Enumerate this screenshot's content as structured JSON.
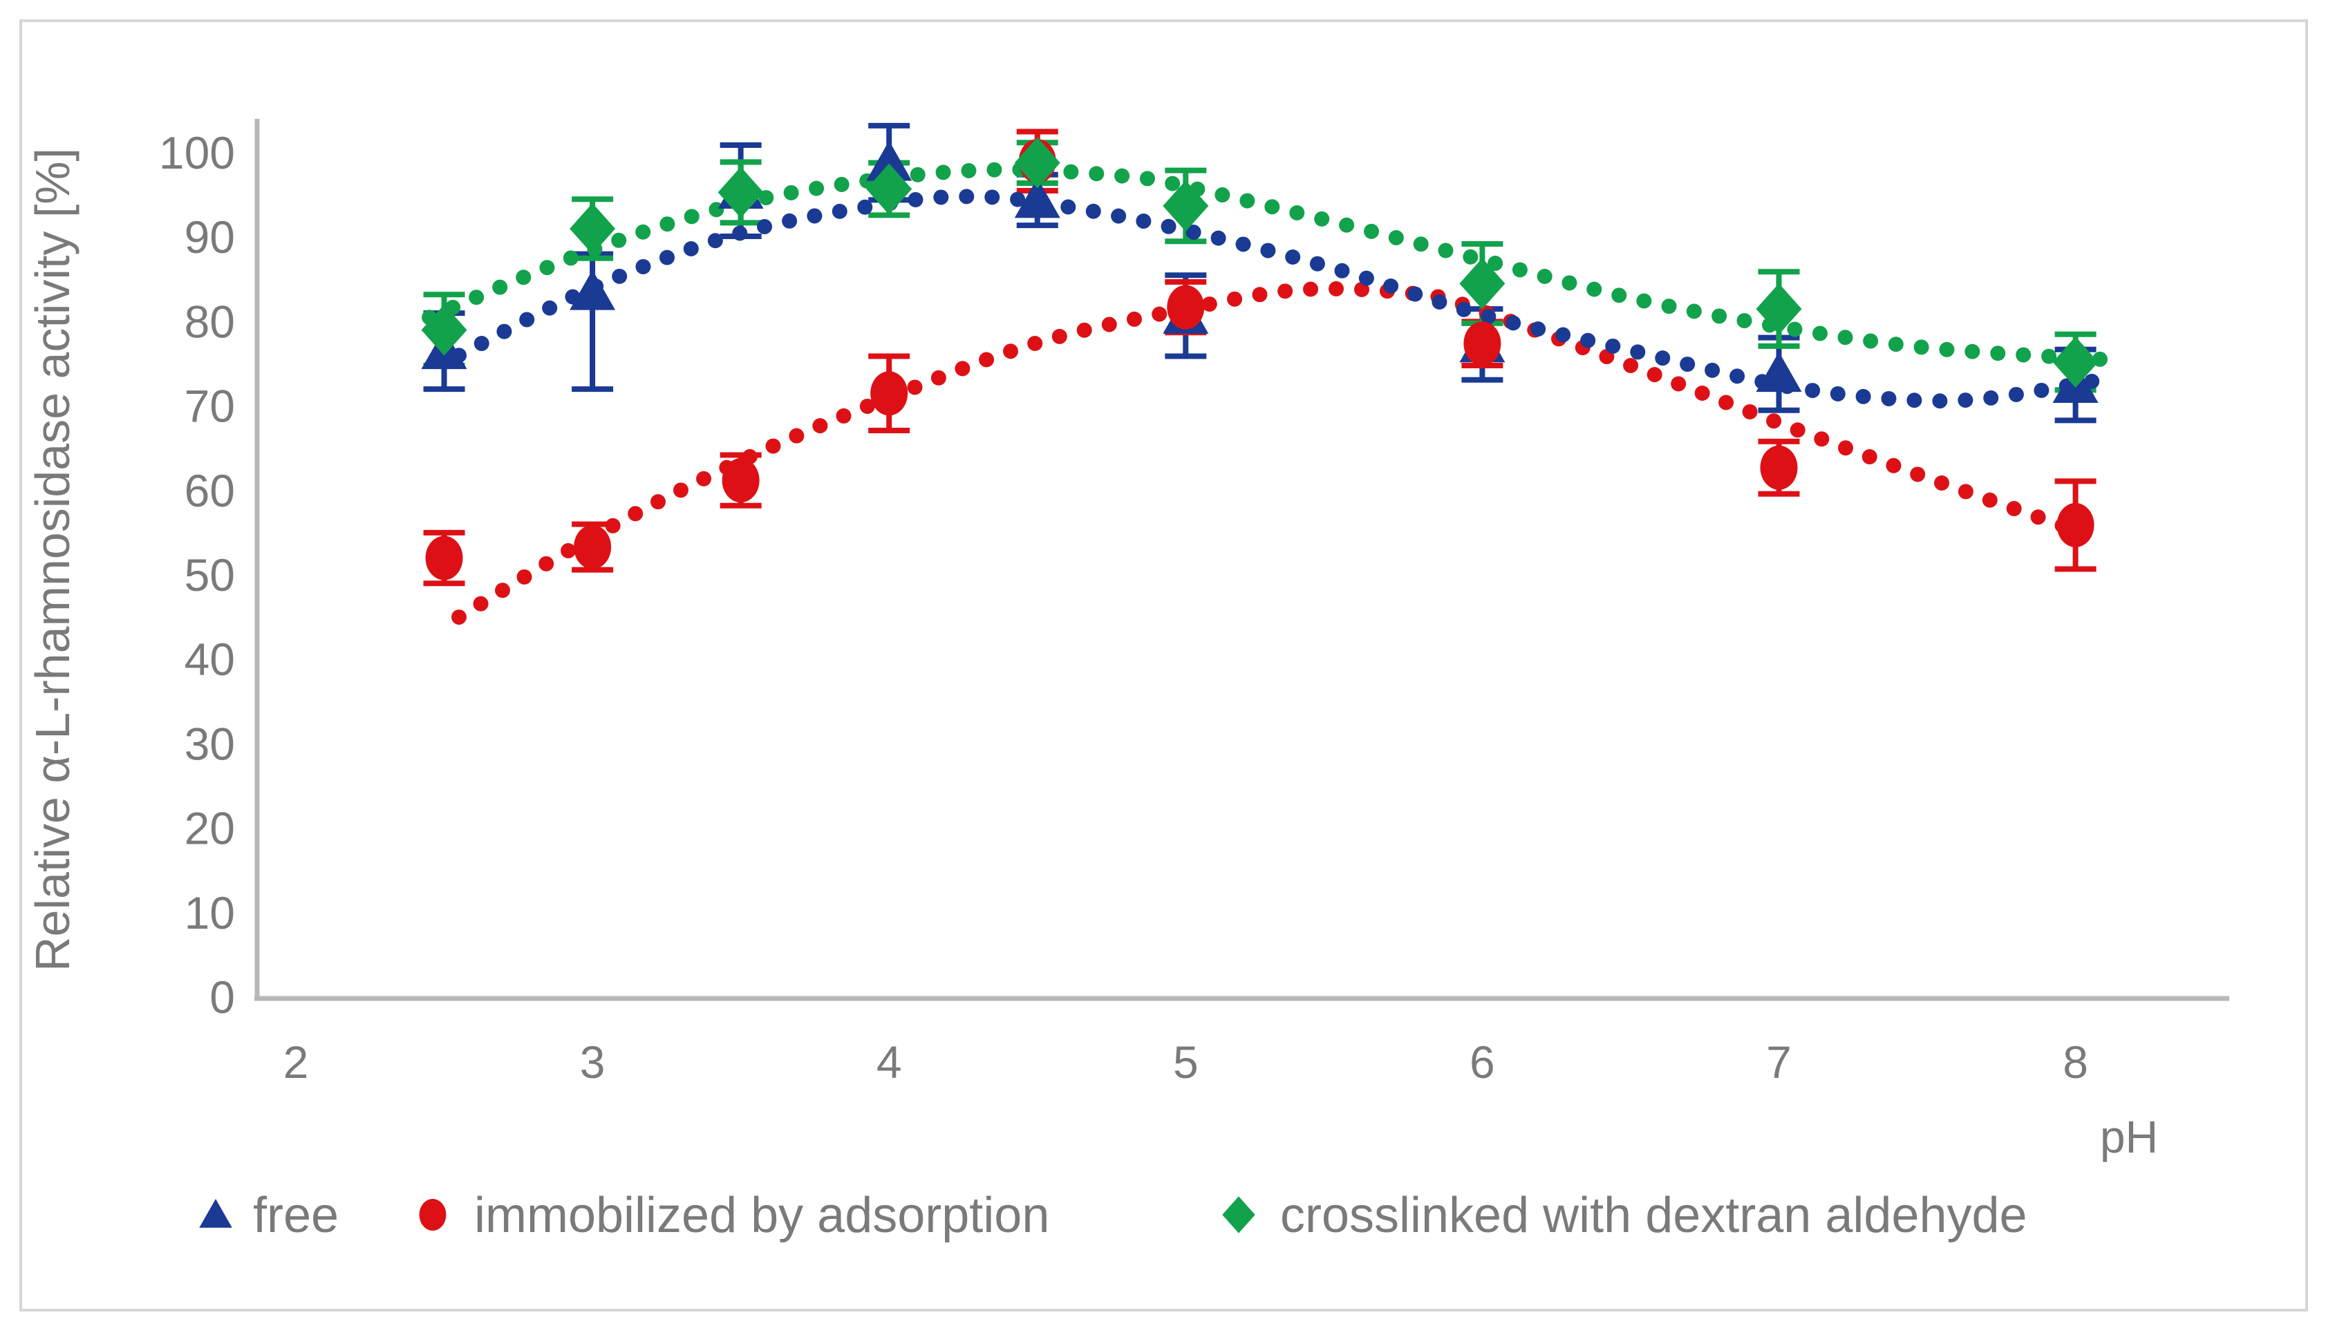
{
  "figure": {
    "background": "#ffffff",
    "border_color": "#d6d6d6",
    "axis_line_color": "#b7b7b7",
    "label_color": "#7a7a7a"
  },
  "axes": {
    "y": {
      "title": "Relative  α-L-rhamnosidase activity [%]",
      "min": 0,
      "max": 100,
      "step": 10,
      "tick_labels": [
        "0",
        "10",
        "20",
        "30",
        "40",
        "50",
        "60",
        "70",
        "80",
        "90",
        "100"
      ]
    },
    "x": {
      "title": "pH",
      "min": 2,
      "max": 8,
      "tick_labels": [
        "2",
        "3",
        "4",
        "5",
        "6",
        "7",
        "8"
      ]
    }
  },
  "chart_data": {
    "type": "scatter",
    "title": "",
    "xlabel": "pH",
    "ylabel": "Relative  α-L-rhamnosidase activity [%]",
    "xlim": [
      2,
      8.5
    ],
    "ylim": [
      0,
      100
    ],
    "grid": false,
    "legend_position": "bottom",
    "series": [
      {
        "name": "free",
        "marker": "triangle",
        "color": "#1a3a94",
        "points": [
          {
            "ph": 2.5,
            "v": 76.5,
            "eu": 4.5,
            "ed": 4.5
          },
          {
            "ph": 3.0,
            "v": 83.5,
            "eu": 4.5,
            "ed": 11.5
          },
          {
            "ph": 3.5,
            "v": 95.5,
            "eu": 5.4,
            "ed": 5.4
          },
          {
            "ph": 4.0,
            "v": 98.8,
            "eu": 4.4,
            "ed": 4.4
          },
          {
            "ph": 4.5,
            "v": 94.4,
            "eu": 3.0,
            "ed": 3.0
          },
          {
            "ph": 5.0,
            "v": 80.7,
            "eu": 4.8,
            "ed": 4.8
          },
          {
            "ph": 6.0,
            "v": 77.3,
            "eu": 4.2,
            "ed": 4.2
          },
          {
            "ph": 7.0,
            "v": 73.8,
            "eu": 4.3,
            "ed": 4.3
          },
          {
            "ph": 8.0,
            "v": 72.5,
            "eu": 4.2,
            "ed": 4.2
          }
        ],
        "trend": [
          [
            2.55,
            76
          ],
          [
            3,
            84
          ],
          [
            3.5,
            90.5
          ],
          [
            4,
            94
          ],
          [
            4.3,
            94.8
          ],
          [
            4.6,
            93.6
          ],
          [
            5,
            90.8
          ],
          [
            5.5,
            86.3
          ],
          [
            6,
            80.8
          ],
          [
            6.5,
            76.6
          ],
          [
            7,
            72.5
          ],
          [
            7.4,
            70.8
          ],
          [
            7.7,
            70.9
          ],
          [
            8.1,
            73.2
          ]
        ]
      },
      {
        "name": "immobilized by adsorption",
        "marker": "circle",
        "color": "#dd1115",
        "points": [
          {
            "ph": 2.5,
            "v": 52.0,
            "eu": 3.0,
            "ed": 3.0
          },
          {
            "ph": 3.0,
            "v": 53.3,
            "eu": 2.7,
            "ed": 2.7
          },
          {
            "ph": 3.5,
            "v": 61.2,
            "eu": 3.0,
            "ed": 3.0
          },
          {
            "ph": 4.0,
            "v": 71.5,
            "eu": 4.4,
            "ed": 4.4
          },
          {
            "ph": 4.5,
            "v": 99.0,
            "eu": 3.5,
            "ed": 3.5
          },
          {
            "ph": 5.0,
            "v": 81.7,
            "eu": 3.0,
            "ed": 3.0
          },
          {
            "ph": 6.0,
            "v": 77.4,
            "eu": 2.6,
            "ed": 2.6
          },
          {
            "ph": 7.0,
            "v": 62.7,
            "eu": 3.1,
            "ed": 3.1
          },
          {
            "ph": 8.0,
            "v": 55.9,
            "eu": 5.2,
            "ed": 5.2
          }
        ],
        "trend": [
          [
            2.55,
            45
          ],
          [
            3,
            54.5
          ],
          [
            3.5,
            63.5
          ],
          [
            4,
            71
          ],
          [
            4.5,
            77.5
          ],
          [
            5,
            81.5
          ],
          [
            5.4,
            83.8
          ],
          [
            5.8,
            83.2
          ],
          [
            6,
            81.2
          ],
          [
            6.5,
            74.8
          ],
          [
            7,
            68
          ],
          [
            7.5,
            61.5
          ],
          [
            8,
            55.3
          ]
        ]
      },
      {
        "name": "crosslinked with dextran aldehyde",
        "marker": "diamond",
        "color": "#12a24b",
        "points": [
          {
            "ph": 2.5,
            "v": 79.0,
            "eu": 4.2,
            "ed": 4.2
          },
          {
            "ph": 3.0,
            "v": 91.0,
            "eu": 3.5,
            "ed": 3.5
          },
          {
            "ph": 3.5,
            "v": 95.3,
            "eu": 3.6,
            "ed": 3.6
          },
          {
            "ph": 4.0,
            "v": 95.7,
            "eu": 3.1,
            "ed": 3.1
          },
          {
            "ph": 4.5,
            "v": 98.8,
            "eu": 2.4,
            "ed": 2.4
          },
          {
            "ph": 5.0,
            "v": 93.7,
            "eu": 4.2,
            "ed": 4.2
          },
          {
            "ph": 6.0,
            "v": 84.5,
            "eu": 4.7,
            "ed": 4.7
          },
          {
            "ph": 7.0,
            "v": 81.5,
            "eu": 4.4,
            "ed": 4.4
          },
          {
            "ph": 8.0,
            "v": 75.2,
            "eu": 3.3,
            "ed": 3.3
          }
        ],
        "trend": [
          [
            2.45,
            80.5
          ],
          [
            3,
            88.5
          ],
          [
            3.5,
            94
          ],
          [
            4,
            97
          ],
          [
            4.4,
            98
          ],
          [
            4.8,
            97.2
          ],
          [
            5,
            96
          ],
          [
            5.5,
            91.8
          ],
          [
            6,
            87.3
          ],
          [
            6.5,
            82.8
          ],
          [
            7,
            79.4
          ],
          [
            7.5,
            76.9
          ],
          [
            8.1,
            75.5
          ]
        ]
      }
    ]
  },
  "legend": {
    "items": [
      {
        "label": "free",
        "marker": "triangle",
        "color": "#1a3a94"
      },
      {
        "label": "immobilized by adsorption",
        "marker": "circle",
        "color": "#dd1115"
      },
      {
        "label": "crosslinked with dextran aldehyde",
        "marker": "diamond",
        "color": "#12a24b"
      }
    ]
  }
}
